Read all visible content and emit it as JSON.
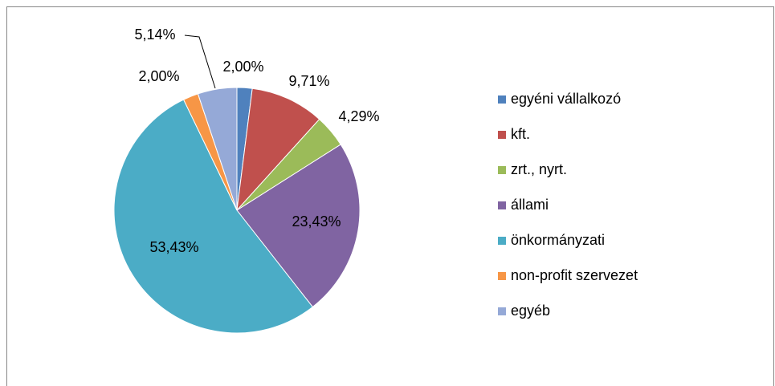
{
  "chart_data": {
    "type": "pie",
    "categories": [
      "egyéni vállalkozó",
      "kft.",
      "zrt., nyrt.",
      "állami",
      "önkormányzati",
      "non-profit szervezet",
      "egyéb"
    ],
    "values": [
      2.0,
      9.71,
      4.29,
      23.43,
      53.43,
      2.0,
      5.14
    ],
    "value_labels": [
      "2,00%",
      "9,71%",
      "4,29%",
      "23,43%",
      "53,43%",
      "2,00%",
      "5,14%"
    ],
    "colors": [
      "#4F81BD",
      "#C0504D",
      "#9BBB59",
      "#8064A2",
      "#4BACC6",
      "#F79646",
      "#95A9D7"
    ],
    "legend": "right"
  }
}
